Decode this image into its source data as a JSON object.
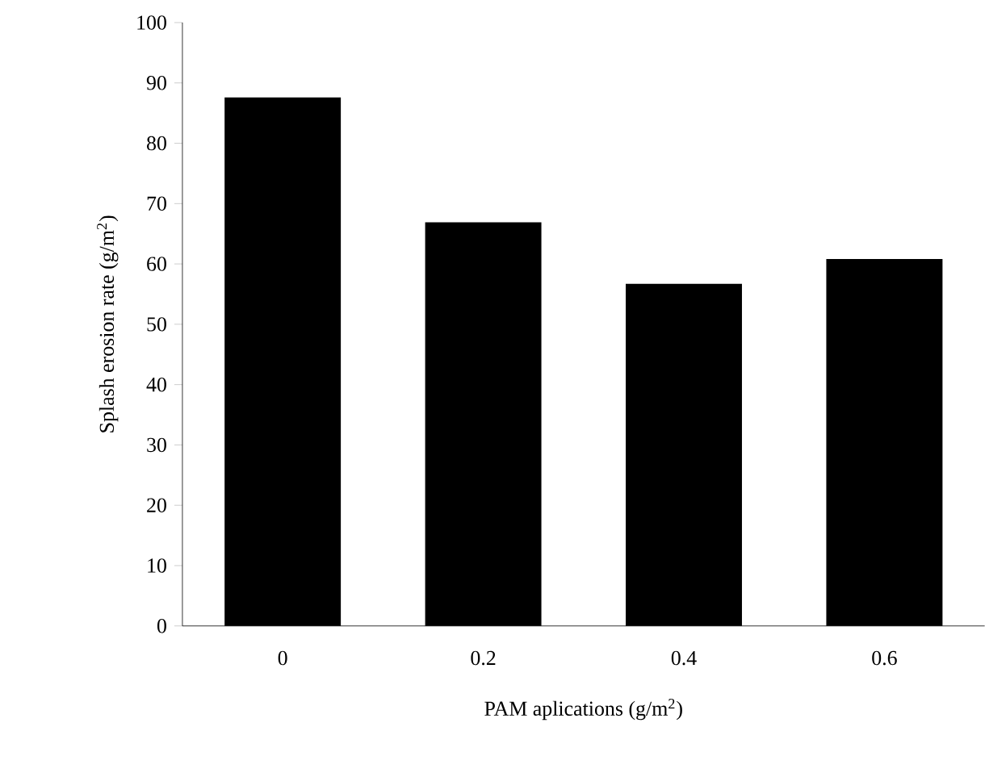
{
  "chart_data": {
    "type": "bar",
    "xlabel": "PAM aplications (g/m$^{2}$)",
    "ylabel": "Splash erosion rate (g/m$^{2}$)",
    "categories": [
      "0",
      "0.2",
      "0.4",
      "0.6"
    ],
    "values": [
      87.6,
      66.9,
      56.7,
      60.8
    ],
    "color": "#000000",
    "ylim": [
      0,
      100
    ],
    "yticks": [
      0,
      10,
      20,
      30,
      40,
      50,
      60,
      70,
      80,
      90,
      100
    ],
    "grid": false
  }
}
